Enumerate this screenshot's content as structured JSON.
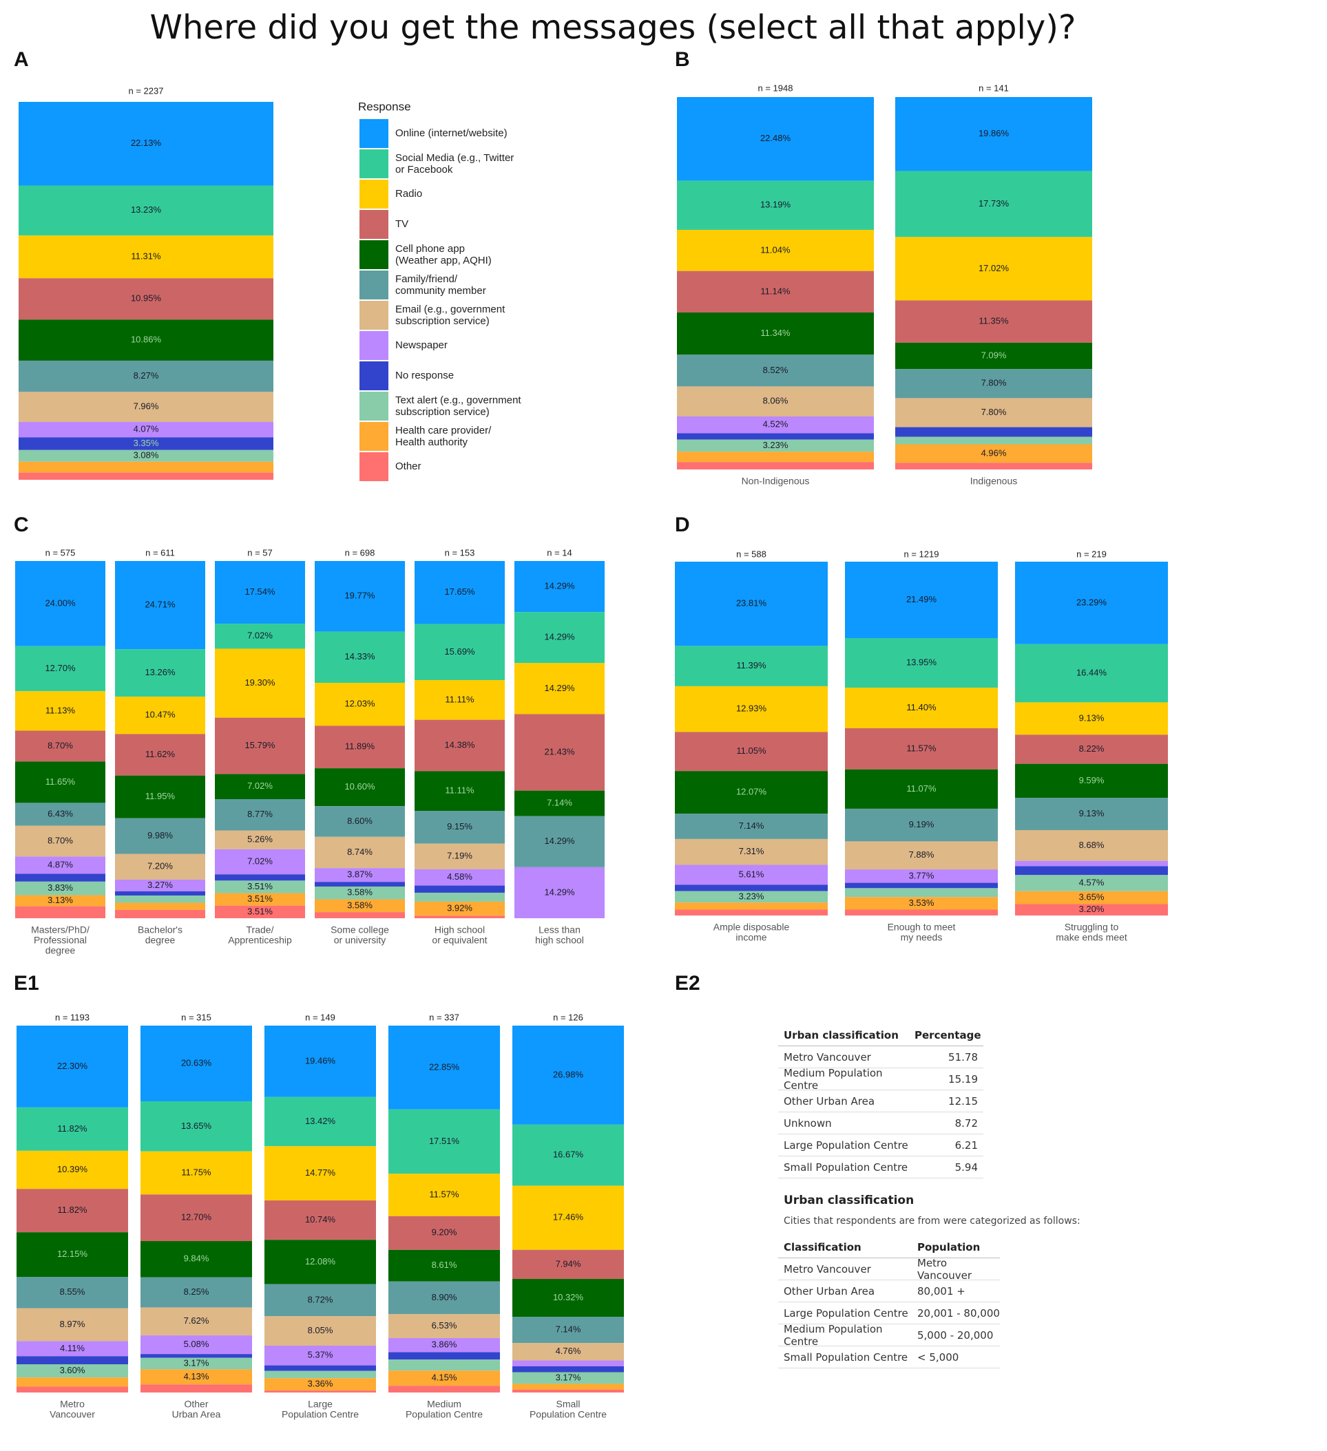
{
  "title": "Where did you get the messages (select all that apply)?",
  "legend": {
    "title": "Response",
    "items": [
      {
        "label": "Online (internet/website)",
        "color": "#0d99ff"
      },
      {
        "label": "Social Media (e.g., Twitter\nor Facebook",
        "color": "#33cc99"
      },
      {
        "label": "Radio",
        "color": "#ffcc00"
      },
      {
        "label": "TV",
        "color": "#cc6666"
      },
      {
        "label": "Cell phone app\n(Weather app, AQHI)",
        "color": "#006600"
      },
      {
        "label": "Family/friend/\ncommunity member",
        "color": "#5f9ea0"
      },
      {
        "label": "Email (e.g., government\nsubscription service)",
        "color": "#deb887"
      },
      {
        "label": "Newspaper",
        "color": "#bb88ff"
      },
      {
        "label": "No response",
        "color": "#3344cc"
      },
      {
        "label": "Text alert (e.g., government\nsubscription service)",
        "color": "#88ccaa"
      },
      {
        "label": "Health care provider/\nHealth authority",
        "color": "#ffaa33"
      },
      {
        "label": "Other",
        "color": "#ff7070"
      }
    ]
  },
  "chart_data": [
    {
      "panel": "A",
      "type": "bar",
      "stacked": true,
      "series": [
        {
          "n": "n = 2237",
          "label": "",
          "values": [
            22.13,
            13.23,
            11.31,
            10.95,
            10.86,
            8.27,
            7.96,
            4.07,
            3.35,
            3.08,
            2.91,
            1.88
          ],
          "labels": [
            "22.13%",
            "13.23%",
            "11.31%",
            "10.95%",
            "10.86%",
            "8.27%",
            "7.96%",
            "4.07%",
            "3.35%",
            "3.08%",
            "",
            ""
          ]
        }
      ]
    },
    {
      "panel": "B",
      "type": "bar",
      "stacked": true,
      "series": [
        {
          "n": "n = 1948",
          "label": "Non-Indigenous",
          "values": [
            22.48,
            13.19,
            11.04,
            11.14,
            11.34,
            8.52,
            8.06,
            4.52,
            1.7,
            3.23,
            2.8,
            1.98
          ],
          "labels": [
            "22.48%",
            "13.19%",
            "11.04%",
            "11.14%",
            "11.34%",
            "8.52%",
            "8.06%",
            "4.52%",
            "",
            "3.23%",
            "",
            ""
          ]
        },
        {
          "n": "n = 141",
          "label": "Indigenous",
          "values": [
            19.86,
            17.73,
            17.02,
            11.35,
            7.09,
            7.8,
            7.8,
            0,
            2.6,
            2.0,
            4.96,
            1.79
          ],
          "labels": [
            "19.86%",
            "17.73%",
            "17.02%",
            "11.35%",
            "7.09%",
            "7.80%",
            "7.80%",
            "",
            "",
            "",
            "4.96%",
            ""
          ]
        }
      ]
    },
    {
      "panel": "C",
      "type": "bar",
      "stacked": true,
      "series": [
        {
          "n": "n = 575",
          "label": "Masters/PhD/\nProfessional\ndegree",
          "values": [
            24.0,
            12.7,
            11.13,
            8.7,
            11.65,
            6.43,
            8.7,
            4.87,
            2.2,
            3.83,
            3.13,
            3.36
          ],
          "labels": [
            "24.00%",
            "12.70%",
            "11.13%",
            "8.70%",
            "11.65%",
            "6.43%",
            "8.70%",
            "4.87%",
            "",
            "3.83%",
            "3.13%",
            ""
          ]
        },
        {
          "n": "n = 611",
          "label": "Bachelor's\ndegree",
          "values": [
            24.71,
            13.26,
            10.47,
            11.62,
            11.95,
            9.98,
            7.2,
            3.27,
            1.2,
            2.0,
            2.0,
            2.34
          ],
          "labels": [
            "24.71%",
            "13.26%",
            "10.47%",
            "11.62%",
            "11.95%",
            "9.98%",
            "7.20%",
            "3.27%",
            "",
            "",
            "",
            ""
          ]
        },
        {
          "n": "n = 57",
          "label": "Trade/\nApprenticeship",
          "values": [
            17.54,
            7.02,
            19.3,
            15.79,
            7.02,
            8.77,
            5.26,
            7.02,
            1.75,
            3.51,
            3.51,
            3.51
          ],
          "labels": [
            "17.54%",
            "7.02%",
            "19.30%",
            "15.79%",
            "7.02%",
            "8.77%",
            "5.26%",
            "7.02%",
            "",
            "3.51%",
            "3.51%",
            "3.51%"
          ]
        },
        {
          "n": "n = 698",
          "label": "Some college\nor university",
          "values": [
            19.77,
            14.33,
            12.03,
            11.89,
            10.6,
            8.6,
            8.74,
            3.87,
            1.3,
            3.58,
            3.58,
            1.71
          ],
          "labels": [
            "19.77%",
            "14.33%",
            "12.03%",
            "11.89%",
            "10.60%",
            "8.60%",
            "8.74%",
            "3.87%",
            "",
            "3.58%",
            "3.58%",
            ""
          ]
        },
        {
          "n": "n = 153",
          "label": "High school\nor equivalent",
          "values": [
            17.65,
            15.69,
            11.11,
            14.38,
            11.11,
            9.15,
            7.19,
            4.58,
            2.0,
            2.5,
            3.92,
            0.72
          ],
          "labels": [
            "17.65%",
            "15.69%",
            "11.11%",
            "14.38%",
            "11.11%",
            "9.15%",
            "7.19%",
            "4.58%",
            "",
            "",
            "3.92%",
            ""
          ]
        },
        {
          "n": "n = 14",
          "label": "Less than\nhigh school",
          "values": [
            14.29,
            14.29,
            14.29,
            21.43,
            7.14,
            14.29,
            0,
            14.29,
            0,
            0,
            0,
            0
          ],
          "labels": [
            "14.29%",
            "14.29%",
            "14.29%",
            "21.43%",
            "7.14%",
            "14.29%",
            "",
            "14.29%",
            "",
            "",
            "",
            ""
          ]
        }
      ]
    },
    {
      "panel": "D",
      "type": "bar",
      "stacked": true,
      "series": [
        {
          "n": "n = 588",
          "label": "Ample disposable\nincome",
          "values": [
            23.81,
            11.39,
            12.93,
            11.05,
            12.07,
            7.14,
            7.31,
            5.61,
            1.8,
            3.23,
            2.0,
            1.66
          ],
          "labels": [
            "23.81%",
            "11.39%",
            "12.93%",
            "11.05%",
            "12.07%",
            "7.14%",
            "7.31%",
            "5.61%",
            "",
            "3.23%",
            "",
            ""
          ]
        },
        {
          "n": "n = 1219",
          "label": "Enough to meet\nmy needs",
          "values": [
            21.49,
            13.95,
            11.4,
            11.57,
            11.07,
            9.19,
            7.88,
            3.77,
            1.5,
            2.5,
            3.53,
            1.65
          ],
          "labels": [
            "21.49%",
            "13.95%",
            "11.40%",
            "11.57%",
            "11.07%",
            "9.19%",
            "7.88%",
            "3.77%",
            "",
            "",
            "3.53%",
            ""
          ]
        },
        {
          "n": "n = 219",
          "label": "Struggling to\nmake ends meet",
          "values": [
            23.29,
            16.44,
            9.13,
            8.22,
            9.59,
            9.13,
            8.68,
            1.5,
            2.5,
            4.57,
            3.65,
            3.2
          ],
          "labels": [
            "23.29%",
            "16.44%",
            "9.13%",
            "8.22%",
            "9.59%",
            "9.13%",
            "8.68%",
            "",
            "",
            "4.57%",
            "3.65%",
            "3.20%"
          ]
        }
      ]
    },
    {
      "panel": "E1",
      "type": "bar",
      "stacked": true,
      "series": [
        {
          "n": "n = 1193",
          "label": "Metro\nVancouver",
          "values": [
            22.3,
            11.82,
            10.39,
            11.82,
            12.15,
            8.55,
            8.97,
            4.11,
            2.2,
            3.6,
            2.5,
            1.59
          ],
          "labels": [
            "22.30%",
            "11.82%",
            "10.39%",
            "11.82%",
            "12.15%",
            "8.55%",
            "8.97%",
            "4.11%",
            "",
            "3.60%",
            "",
            ""
          ]
        },
        {
          "n": "n = 315",
          "label": "Other\nUrban Area",
          "values": [
            20.63,
            13.65,
            11.75,
            12.7,
            9.84,
            8.25,
            7.62,
            5.08,
            1.0,
            3.17,
            4.13,
            2.18
          ],
          "labels": [
            "20.63%",
            "13.65%",
            "11.75%",
            "12.70%",
            "9.84%",
            "8.25%",
            "7.62%",
            "5.08%",
            "",
            "3.17%",
            "4.13%",
            ""
          ]
        },
        {
          "n": "n = 149",
          "label": "Large\nPopulation Centre",
          "values": [
            19.46,
            13.42,
            14.77,
            10.74,
            12.08,
            8.72,
            8.05,
            5.37,
            1.5,
            2.0,
            3.36,
            0.53
          ],
          "labels": [
            "19.46%",
            "13.42%",
            "14.77%",
            "10.74%",
            "12.08%",
            "8.72%",
            "8.05%",
            "5.37%",
            "",
            "",
            "3.36%",
            ""
          ]
        },
        {
          "n": "n = 337",
          "label": "Medium\nPopulation Centre",
          "values": [
            22.85,
            17.51,
            11.57,
            9.2,
            8.61,
            8.9,
            6.53,
            3.86,
            2.0,
            3.0,
            4.15,
            1.82
          ],
          "labels": [
            "22.85%",
            "17.51%",
            "11.57%",
            "9.20%",
            "8.61%",
            "8.90%",
            "6.53%",
            "3.86%",
            "",
            "",
            "4.15%",
            ""
          ]
        },
        {
          "n": "n = 126",
          "label": "Small\nPopulation Centre",
          "values": [
            26.98,
            16.67,
            17.46,
            7.94,
            10.32,
            7.14,
            4.76,
            1.6,
            1.6,
            3.17,
            1.6,
            0.76
          ],
          "labels": [
            "26.98%",
            "16.67%",
            "17.46%",
            "7.94%",
            "10.32%",
            "7.14%",
            "4.76%",
            "",
            "",
            "3.17%",
            "",
            ""
          ]
        }
      ]
    }
  ],
  "panel_letters": [
    "A",
    "B",
    "C",
    "D",
    "E1",
    "E2"
  ],
  "e2": {
    "table1": {
      "headers": [
        "Urban classification",
        "Percentage"
      ],
      "rows": [
        [
          "Metro Vancouver",
          "51.78"
        ],
        [
          "Medium Population Centre",
          "15.19"
        ],
        [
          "Other Urban Area",
          "12.15"
        ],
        [
          "Unknown",
          "8.72"
        ],
        [
          "Large Population Centre",
          "6.21"
        ],
        [
          "Small Population Centre",
          "5.94"
        ]
      ]
    },
    "table2_title": "Urban classification",
    "table2_sub": "Cities that respondents are from were categorized as follows:",
    "table2": {
      "headers": [
        "Classification",
        "Population"
      ],
      "rows": [
        [
          "Metro Vancouver",
          "Metro Vancouver"
        ],
        [
          "Other Urban Area",
          "80,001 +"
        ],
        [
          "Large Population Centre",
          "20,001 - 80,000"
        ],
        [
          "Medium Population Centre",
          "5,000 - 20,000"
        ],
        [
          "Small Population Centre",
          "< 5,000"
        ]
      ]
    }
  }
}
